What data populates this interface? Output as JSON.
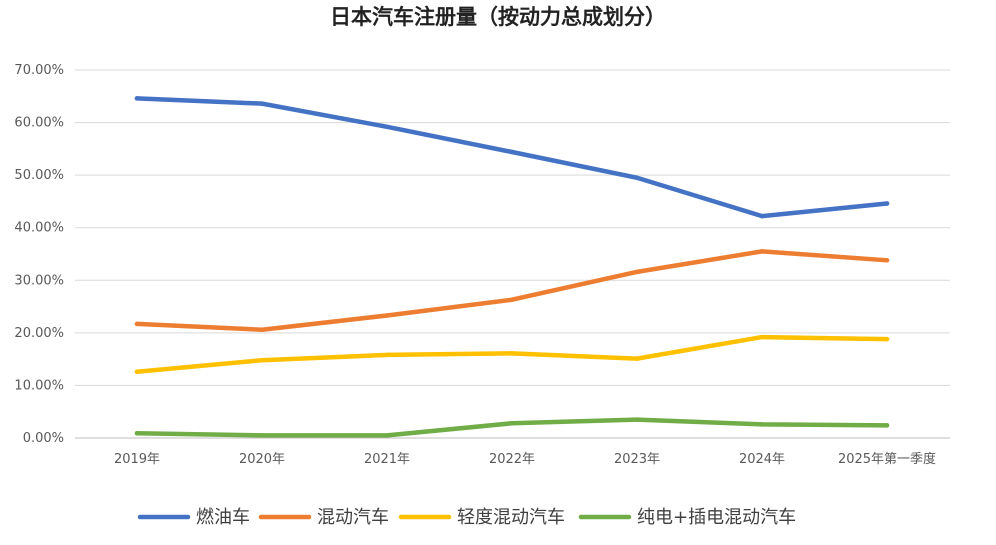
{
  "chart_data": {
    "type": "line",
    "title": "日本汽车注册量（按动力总成划分）",
    "xlabel": "",
    "ylabel": "",
    "categories": [
      "2019年",
      "2020年",
      "2021年",
      "2022年",
      "2023年",
      "2024年",
      "2025年第一季度"
    ],
    "ylim": [
      0,
      0.7
    ],
    "yticks": [
      0,
      0.1,
      0.2,
      0.3,
      0.4,
      0.5,
      0.6,
      0.7
    ],
    "ytick_labels": [
      "0.00%",
      "10.00%",
      "20.00%",
      "30.00%",
      "40.00%",
      "50.00%",
      "60.00%",
      "70.00%"
    ],
    "grid": true,
    "legend_position": "bottom",
    "series": [
      {
        "name": "燃油车",
        "color": "#4472C4",
        "values": [
          0.646,
          0.636,
          0.592,
          0.544,
          0.495,
          0.422,
          0.446
        ]
      },
      {
        "name": "混动汽车",
        "color": "#ED7D31",
        "values": [
          0.217,
          0.206,
          0.233,
          0.263,
          0.316,
          0.355,
          0.338
        ]
      },
      {
        "name": "轻度混动汽车",
        "color": "#FFC000",
        "values": [
          0.126,
          0.148,
          0.158,
          0.161,
          0.151,
          0.192,
          0.188
        ]
      },
      {
        "name": "纯电+插电混动汽车",
        "color": "#70AD47",
        "values": [
          0.009,
          0.005,
          0.005,
          0.028,
          0.035,
          0.026,
          0.024
        ]
      }
    ]
  }
}
